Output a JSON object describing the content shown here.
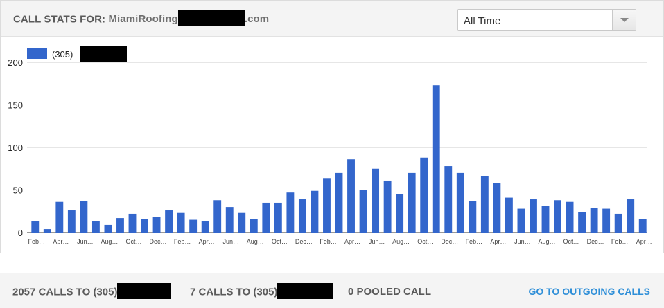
{
  "header": {
    "title_prefix": "CALL STATS FOR:",
    "domain_start": "MiamiRoofing",
    "domain_end": ".com"
  },
  "filter": {
    "selected": "All Time"
  },
  "chart_data": {
    "type": "bar",
    "legend": {
      "label": "(305)",
      "placement": "top-left",
      "color": "#3366cc"
    },
    "ylim": [
      0,
      200
    ],
    "yticks": [
      0,
      50,
      100,
      150,
      200
    ],
    "grid": true,
    "xlabels": [
      "Feb…",
      "Apr…",
      "Jun…",
      "Aug…",
      "Oct…",
      "Dec…",
      "Feb…",
      "Apr…",
      "Jun…",
      "Aug…",
      "Oct…",
      "Dec…",
      "Feb…",
      "Apr…",
      "Jun…",
      "Aug…",
      "Oct…",
      "Dec…",
      "Feb…",
      "Apr…",
      "Jun…",
      "Aug…",
      "Oct…",
      "Dec…",
      "Feb…",
      "Apr…"
    ],
    "values": [
      13,
      4,
      36,
      26,
      37,
      13,
      9,
      17,
      22,
      16,
      18,
      26,
      23,
      15,
      13,
      38,
      30,
      23,
      16,
      35,
      35,
      47,
      39,
      49,
      64,
      70,
      86,
      50,
      75,
      61,
      45,
      70,
      88,
      173,
      78,
      70,
      37,
      66,
      58,
      41,
      28,
      39,
      31,
      38,
      36,
      24,
      29,
      28,
      22,
      39,
      16
    ]
  },
  "footer": {
    "calls_count": "2057 CALLS TO",
    "calls_prefix": "(305)",
    "second_count": "7 CALLS TO",
    "second_prefix": "(305)",
    "pooled": "0 POOLED CALL",
    "link": "GO TO OUTGOING CALLS"
  }
}
